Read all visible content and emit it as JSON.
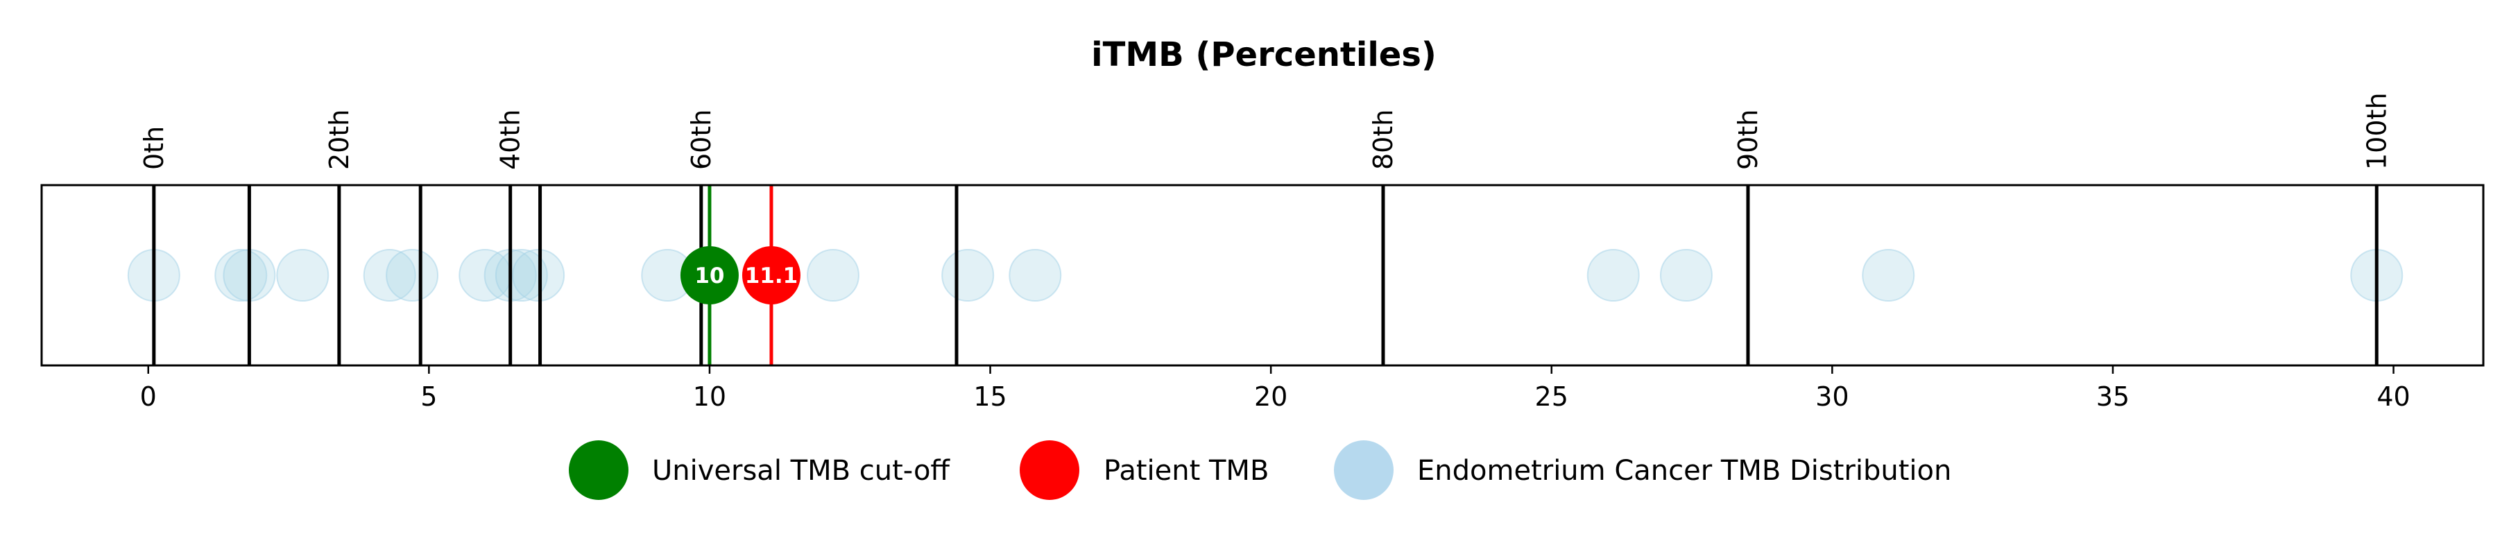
{
  "chart_data": {
    "type": "scatter",
    "title": "iTMB (Percentiles)",
    "xlim": [
      -1.9,
      41.6
    ],
    "xticks": [
      0,
      5,
      10,
      15,
      20,
      25,
      30,
      35,
      40
    ],
    "percentile_lines": [
      {
        "x": 0.1,
        "label": "0th"
      },
      {
        "x": 1.8,
        "label": ""
      },
      {
        "x": 3.4,
        "label": "20th"
      },
      {
        "x": 4.85,
        "label": ""
      },
      {
        "x": 6.45,
        "label": "40th"
      },
      {
        "x": 6.98,
        "label": ""
      },
      {
        "x": 9.85,
        "label": "60th"
      },
      {
        "x": 14.4,
        "label": ""
      },
      {
        "x": 22.0,
        "label": "80th"
      },
      {
        "x": 28.5,
        "label": "90th"
      },
      {
        "x": 39.7,
        "label": "100th"
      }
    ],
    "distribution": [
      0.1,
      1.65,
      1.8,
      2.75,
      4.3,
      4.7,
      6.0,
      6.45,
      6.65,
      6.95,
      9.25,
      12.2,
      14.6,
      15.8,
      26.1,
      27.4,
      31.0,
      39.7
    ],
    "cutoff": {
      "value": 10,
      "label": "10",
      "color": "#008000"
    },
    "patient": {
      "value": 11.1,
      "label": "11.1",
      "color": "#ff0000"
    },
    "distribution_color": "#add8e6",
    "legend": [
      {
        "label": "Universal TMB cut-off",
        "color": "#008000"
      },
      {
        "label": "Patient TMB",
        "color": "#ff0000"
      },
      {
        "label": "Endometrium Cancer TMB Distribution",
        "color": "#b6d9ee"
      }
    ]
  }
}
